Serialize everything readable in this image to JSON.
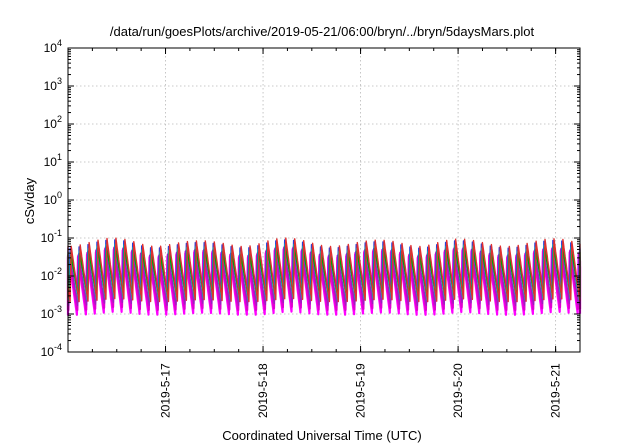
{
  "chart_data": {
    "type": "line",
    "title": "/data/run/goesPlots/archive/2019-05-21/06:00/bryn/../bryn/5daysMars.plot",
    "xlabel": "Coordinated Universal Time (UTC)",
    "ylabel": "cSv/day",
    "yscale": "log",
    "ylim": [
      0.0001,
      10000
    ],
    "xlim": [
      "2019-05-16T00:00",
      "2019-05-21T06:00"
    ],
    "grid": true,
    "y_ticks": [
      {
        "base": "10",
        "exp": "-4"
      },
      {
        "base": "10",
        "exp": "-3"
      },
      {
        "base": "10",
        "exp": "-2"
      },
      {
        "base": "10",
        "exp": "-1"
      },
      {
        "base": "10",
        "exp": "0"
      },
      {
        "base": "10",
        "exp": "1"
      },
      {
        "base": "10",
        "exp": "2"
      },
      {
        "base": "10",
        "exp": "3"
      },
      {
        "base": "10",
        "exp": "4"
      }
    ],
    "x_ticks": [
      "2019-5-17",
      "2019-5-18",
      "2019-5-19",
      "2019-5-20",
      "2019-5-21"
    ],
    "periodic_pattern": {
      "period_hours": 2.2,
      "peak_range": [
        0.04,
        0.15
      ],
      "trough_range": [
        0.0009,
        0.004
      ]
    },
    "series": [
      {
        "color": "#ff00ff",
        "peak": 0.05,
        "trough": 0.0009
      },
      {
        "color": "#e000d0",
        "peak": 0.055,
        "trough": 0.0012
      },
      {
        "color": "#9a20c0",
        "peak": 0.06,
        "trough": 0.0016
      },
      {
        "color": "#2040e0",
        "peak": 0.09,
        "trough": 0.003
      },
      {
        "color": "#00c0b0",
        "peak": 0.07,
        "trough": 0.0022
      },
      {
        "color": "#00a000",
        "peak": 0.06,
        "trough": 0.0025
      },
      {
        "color": "#e03030",
        "peak": 0.1,
        "trough": 0.002
      }
    ]
  }
}
